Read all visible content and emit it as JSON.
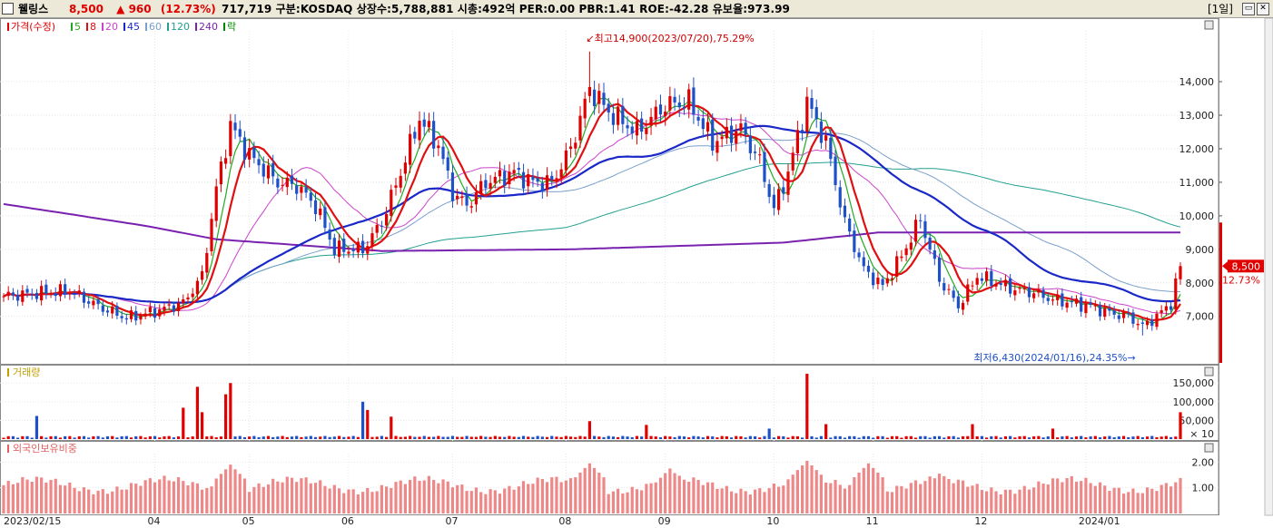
{
  "header": {
    "name": "웰링스",
    "price": "8,500",
    "change_arrow": "▲",
    "change": "960",
    "change_pct": "(12.73%)",
    "rest": "717,719  구분:KOSDAQ 상장수:5,788,881 시총:492억 PER:0.00 PBR:1.41 ROE:-42.28 유보율:973.99",
    "period_label": "[1일]",
    "btn_restore": "▭",
    "btn_close": "✕"
  },
  "colors": {
    "up": "#e00000",
    "down": "#1e50c8",
    "ma5": "#22aa22",
    "ma8": "#e01010",
    "ma20": "#cc44cc",
    "ma45": "#1a28c8",
    "ma60": "#7aa0cc",
    "ma120": "#22a090",
    "ma240": "#7a22b0",
    "foreign": "#ee8888"
  },
  "panels": {
    "price": {
      "legend": [
        {
          "text": "가격(수정)",
          "color": "#e00000"
        },
        {
          "text": "5",
          "color": "#22aa22"
        },
        {
          "text": "8",
          "color": "#e01010"
        },
        {
          "text": "20",
          "color": "#cc44cc"
        },
        {
          "text": "45",
          "color": "#1a28c8"
        },
        {
          "text": "60",
          "color": "#7aa0cc"
        },
        {
          "text": "120",
          "color": "#22a090"
        },
        {
          "text": "240",
          "color": "#7a22b0"
        },
        {
          "text": "락",
          "color": "#008800"
        }
      ],
      "high_annotation": "최고14,900(2023/07/20),75.29%",
      "low_annotation": "최저6,430(2024/01/16),24.35%",
      "current_price_tag": "8,500",
      "current_pct_tag": "12.73%"
    },
    "volume": {
      "legend": "거래량",
      "multiplier_label": "× 10"
    },
    "foreign": {
      "legend": "외국인보유비중"
    }
  },
  "chart_data": [
    {
      "type": "candlestick",
      "title": "웰링스",
      "x_start": "2023/02/15",
      "x_end": "2024/01/25",
      "x_ticks": [
        "2023/02/15",
        "04",
        "05",
        "06",
        "07",
        "08",
        "09",
        "10",
        "11",
        "12",
        "2024/01"
      ],
      "y_ticks": [
        7000,
        8000,
        9000,
        10000,
        11000,
        12000,
        13000,
        14000
      ],
      "y_tick_labels": [
        "7,000",
        "8,000",
        "9,000",
        "10,000",
        "11,000",
        "12,000",
        "13,000",
        "14,000"
      ],
      "ylim": [
        6100,
        15300
      ],
      "grid": true,
      "close_keypoints": [
        [
          0,
          7600
        ],
        [
          8,
          7700
        ],
        [
          14,
          7750
        ],
        [
          20,
          7300
        ],
        [
          26,
          6950
        ],
        [
          32,
          7150
        ],
        [
          38,
          7400
        ],
        [
          42,
          8200
        ],
        [
          45,
          10800
        ],
        [
          48,
          12700
        ],
        [
          52,
          11800
        ],
        [
          58,
          11000
        ],
        [
          62,
          10900
        ],
        [
          66,
          10300
        ],
        [
          70,
          9000
        ],
        [
          76,
          9000
        ],
        [
          80,
          9800
        ],
        [
          84,
          11300
        ],
        [
          88,
          12900
        ],
        [
          92,
          12100
        ],
        [
          95,
          10700
        ],
        [
          98,
          10300
        ],
        [
          102,
          11000
        ],
        [
          108,
          11300
        ],
        [
          112,
          11000
        ],
        [
          116,
          11000
        ],
        [
          120,
          12000
        ],
        [
          124,
          13800
        ],
        [
          128,
          13100
        ],
        [
          134,
          12500
        ],
        [
          140,
          13300
        ],
        [
          145,
          13400
        ],
        [
          150,
          12200
        ],
        [
          156,
          12600
        ],
        [
          160,
          11600
        ],
        [
          163,
          10200
        ],
        [
          166,
          11300
        ],
        [
          170,
          13400
        ],
        [
          174,
          12200
        ],
        [
          178,
          9800
        ],
        [
          182,
          8400
        ],
        [
          186,
          7900
        ],
        [
          190,
          8800
        ],
        [
          194,
          9900
        ],
        [
          198,
          8100
        ],
        [
          202,
          7300
        ],
        [
          206,
          8200
        ],
        [
          210,
          8000
        ],
        [
          214,
          7800
        ],
        [
          218,
          7700
        ],
        [
          222,
          7500
        ],
        [
          226,
          7400
        ],
        [
          230,
          7300
        ],
        [
          234,
          7100
        ],
        [
          238,
          7000
        ],
        [
          241,
          6700
        ],
        [
          244,
          7000
        ],
        [
          247,
          7400
        ],
        [
          249,
          8500
        ]
      ],
      "ma240_keypoints": [
        [
          0,
          10350
        ],
        [
          14,
          10050
        ],
        [
          30,
          9700
        ],
        [
          45,
          9300
        ],
        [
          80,
          8950
        ],
        [
          120,
          9000
        ],
        [
          165,
          9200
        ],
        [
          185,
          9500
        ],
        [
          249,
          9500
        ]
      ],
      "price_high": 14900,
      "price_high_date": "2023/07/20",
      "price_low": 6430,
      "price_low_date": "2024/01/16",
      "last_close": 8500,
      "last_change": 960,
      "last_change_pct": 12.73
    },
    {
      "type": "bar",
      "title": "거래량",
      "unit_multiplier": 10,
      "y_ticks": [
        50000,
        100000,
        150000
      ],
      "y_tick_labels": [
        "50,000",
        "100,000",
        "150,000"
      ],
      "ylim": [
        0,
        170000
      ],
      "spikes": [
        [
          7,
          62000
        ],
        [
          38,
          84000
        ],
        [
          41,
          140000
        ],
        [
          42,
          72000
        ],
        [
          47,
          120000
        ],
        [
          48,
          150000
        ],
        [
          76,
          100000
        ],
        [
          77,
          78000
        ],
        [
          82,
          60000
        ],
        [
          124,
          48000
        ],
        [
          136,
          38000
        ],
        [
          162,
          28000
        ],
        [
          170,
          175000
        ],
        [
          174,
          40000
        ],
        [
          205,
          40000
        ],
        [
          222,
          28000
        ],
        [
          249,
          72000
        ]
      ],
      "base_level": 6000
    },
    {
      "type": "bar",
      "title": "외국인보유비중",
      "y_ticks": [
        1.0,
        2.0
      ],
      "y_tick_labels": [
        "1.00",
        "2.00"
      ],
      "ylim": [
        0,
        2.4
      ],
      "base_level": 1.1,
      "peaks": [
        [
          48,
          1.9
        ],
        [
          124,
          1.95
        ],
        [
          141,
          1.75
        ],
        [
          170,
          2.05
        ],
        [
          183,
          1.95
        ],
        [
          198,
          1.55
        ]
      ]
    }
  ]
}
